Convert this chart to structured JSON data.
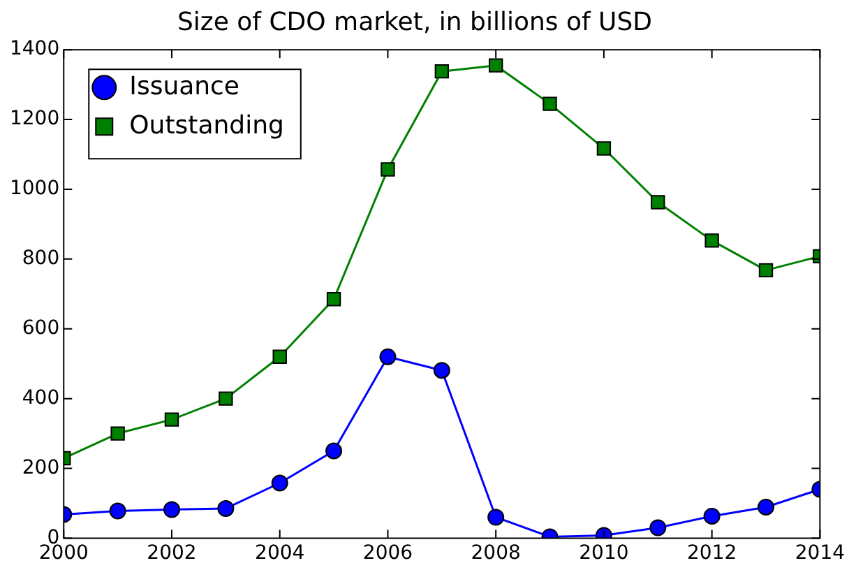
{
  "chart_data": {
    "type": "line",
    "title": "Size of CDO market, in billions of USD",
    "x": [
      2000,
      2001,
      2002,
      2003,
      2004,
      2005,
      2006,
      2007,
      2008,
      2009,
      2010,
      2011,
      2012,
      2013,
      2014
    ],
    "series": [
      {
        "name": "Issuance",
        "color": "#0000ff",
        "marker": "circle",
        "values": [
          68,
          78,
          82,
          85,
          158,
          250,
          520,
          481,
          60,
          4,
          8,
          30,
          63,
          89,
          140
        ]
      },
      {
        "name": "Outstanding",
        "color": "#008000",
        "marker": "square",
        "values": [
          229,
          300,
          340,
          400,
          520,
          685,
          1057,
          1338,
          1355,
          1245,
          1117,
          963,
          853,
          768,
          808
        ]
      }
    ],
    "xlim": [
      2000,
      2014
    ],
    "xticks": [
      2000,
      2002,
      2004,
      2006,
      2008,
      2010,
      2012,
      2014
    ],
    "ylim": [
      0,
      1400
    ],
    "yticks": [
      0,
      200,
      400,
      600,
      800,
      1000,
      1200,
      1400
    ],
    "grid": false,
    "legend": "top left",
    "line_style": "solid"
  }
}
